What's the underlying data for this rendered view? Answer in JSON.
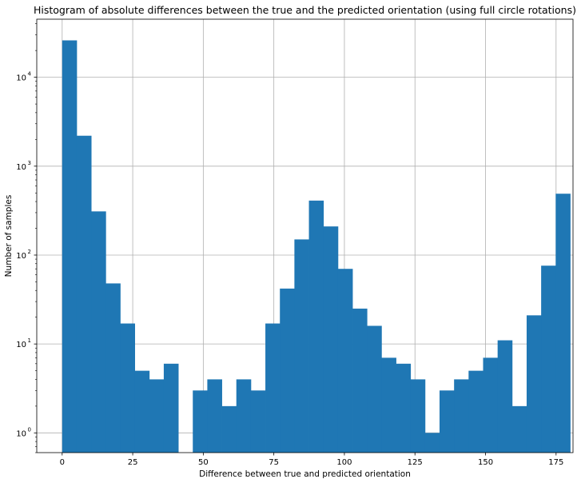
{
  "chart_data": {
    "type": "bar",
    "title": "Histogram of absolute differences between the true and the predicted orientation (using full circle rotations)",
    "xlabel": "Difference between true and predicted orientation",
    "ylabel": "Number of samples",
    "y_scale": "log",
    "grid": true,
    "bar_color": "#1f77b4",
    "xlim": [
      -9,
      181
    ],
    "ylim": [
      0.6,
      45000
    ],
    "x_ticks": [
      0,
      25,
      50,
      75,
      100,
      125,
      150,
      175
    ],
    "x_tick_labels": [
      "0",
      "25",
      "50",
      "75",
      "100",
      "125",
      "150",
      "175"
    ],
    "y_ticks": [
      1,
      10,
      100,
      1000,
      10000
    ],
    "y_tick_labels": [
      "10",
      "10",
      "10",
      "10",
      "10"
    ],
    "y_tick_exponents": [
      "0",
      "1",
      "2",
      "3",
      "4"
    ],
    "bin_width": 5.1429,
    "bins": [
      {
        "start": 0.0,
        "end": 5.1429,
        "count": 26000
      },
      {
        "start": 5.1429,
        "end": 10.286,
        "count": 2200
      },
      {
        "start": 10.286,
        "end": 15.429,
        "count": 310
      },
      {
        "start": 15.429,
        "end": 20.571,
        "count": 48
      },
      {
        "start": 20.571,
        "end": 25.714,
        "count": 17
      },
      {
        "start": 25.714,
        "end": 30.857,
        "count": 5
      },
      {
        "start": 30.857,
        "end": 36.0,
        "count": 4
      },
      {
        "start": 36.0,
        "end": 41.143,
        "count": 6
      },
      {
        "start": 41.143,
        "end": 46.286,
        "count": 0
      },
      {
        "start": 46.286,
        "end": 51.429,
        "count": 3
      },
      {
        "start": 51.429,
        "end": 56.571,
        "count": 4
      },
      {
        "start": 56.571,
        "end": 61.714,
        "count": 2
      },
      {
        "start": 61.714,
        "end": 66.857,
        "count": 4
      },
      {
        "start": 66.857,
        "end": 72.0,
        "count": 3
      },
      {
        "start": 72.0,
        "end": 77.143,
        "count": 17
      },
      {
        "start": 77.143,
        "end": 82.286,
        "count": 42
      },
      {
        "start": 82.286,
        "end": 87.429,
        "count": 150
      },
      {
        "start": 87.429,
        "end": 92.571,
        "count": 410
      },
      {
        "start": 92.571,
        "end": 97.714,
        "count": 210
      },
      {
        "start": 97.714,
        "end": 102.86,
        "count": 70
      },
      {
        "start": 102.86,
        "end": 108.0,
        "count": 25
      },
      {
        "start": 108.0,
        "end": 113.14,
        "count": 16
      },
      {
        "start": 113.14,
        "end": 118.29,
        "count": 7
      },
      {
        "start": 118.29,
        "end": 123.43,
        "count": 6
      },
      {
        "start": 123.43,
        "end": 128.57,
        "count": 4
      },
      {
        "start": 128.57,
        "end": 133.71,
        "count": 1
      },
      {
        "start": 133.71,
        "end": 138.86,
        "count": 3
      },
      {
        "start": 138.86,
        "end": 144.0,
        "count": 4
      },
      {
        "start": 144.0,
        "end": 149.14,
        "count": 5
      },
      {
        "start": 149.14,
        "end": 154.29,
        "count": 7
      },
      {
        "start": 154.29,
        "end": 159.43,
        "count": 11
      },
      {
        "start": 159.43,
        "end": 164.57,
        "count": 2
      },
      {
        "start": 164.57,
        "end": 169.71,
        "count": 21
      },
      {
        "start": 169.71,
        "end": 174.86,
        "count": 76
      },
      {
        "start": 174.86,
        "end": 180.0,
        "count": 490
      }
    ]
  }
}
